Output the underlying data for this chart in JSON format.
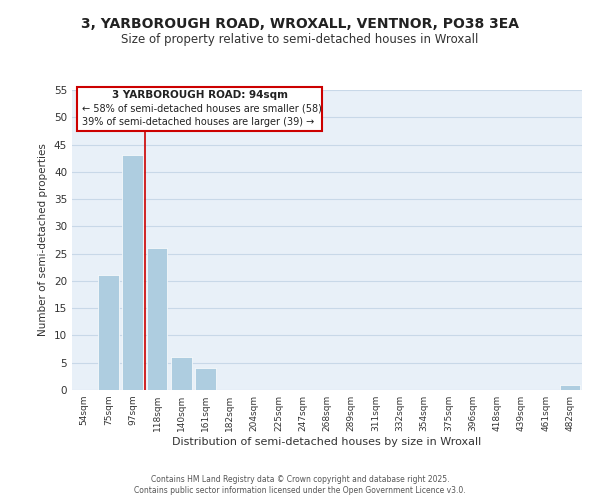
{
  "title": "3, YARBOROUGH ROAD, WROXALL, VENTNOR, PO38 3EA",
  "subtitle": "Size of property relative to semi-detached houses in Wroxall",
  "xlabel": "Distribution of semi-detached houses by size in Wroxall",
  "ylabel": "Number of semi-detached properties",
  "categories": [
    "54sqm",
    "75sqm",
    "97sqm",
    "118sqm",
    "140sqm",
    "161sqm",
    "182sqm",
    "204sqm",
    "225sqm",
    "247sqm",
    "268sqm",
    "289sqm",
    "311sqm",
    "332sqm",
    "354sqm",
    "375sqm",
    "396sqm",
    "418sqm",
    "439sqm",
    "461sqm",
    "482sqm"
  ],
  "values": [
    0,
    21,
    43,
    26,
    6,
    4,
    0,
    0,
    0,
    0,
    0,
    0,
    0,
    0,
    0,
    0,
    0,
    0,
    0,
    0,
    1
  ],
  "bar_color": "#aecde0",
  "grid_color": "#c8d8e8",
  "background_color": "#e8f0f8",
  "red_line_x": 2.5,
  "ylim": [
    0,
    55
  ],
  "yticks": [
    0,
    5,
    10,
    15,
    20,
    25,
    30,
    35,
    40,
    45,
    50,
    55
  ],
  "annotation_title": "3 YARBOROUGH ROAD: 94sqm",
  "annotation_line1": "← 58% of semi-detached houses are smaller (58)",
  "annotation_line2": "39% of semi-detached houses are larger (39) →",
  "footer1": "Contains HM Land Registry data © Crown copyright and database right 2025.",
  "footer2": "Contains public sector information licensed under the Open Government Licence v3.0."
}
